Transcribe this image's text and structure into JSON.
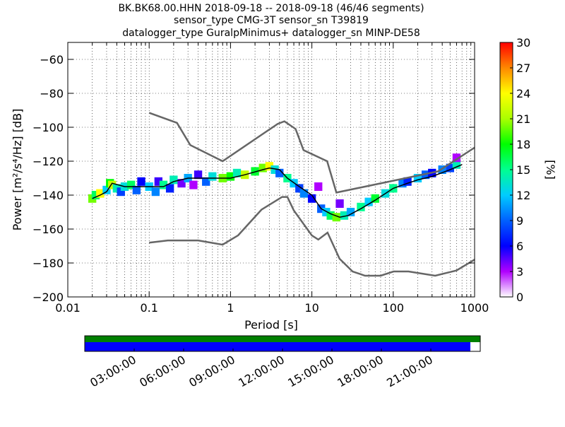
{
  "title": {
    "line1": "BK.BK68.00.HHN   2018-09-18 -- 2018-09-18  (46/46 segments)",
    "line2": "sensor_type CMG-3T sensor_sn T39819",
    "line3": "datalogger_type GuralpMinimus+ datalogger_sn MINP-DE58"
  },
  "colorbar": {
    "label": "[%]",
    "ticks": [
      "0",
      "3",
      "6",
      "9",
      "12",
      "15",
      "18",
      "21",
      "24",
      "27",
      "30"
    ],
    "range": [
      0,
      30
    ]
  },
  "timeline": {
    "labels": [
      "03:00:00",
      "06:00:00",
      "09:00:00",
      "12:00:00",
      "15:00:00",
      "18:00:00",
      "21:00:00"
    ],
    "coverage_color": "#008000",
    "data_color": "#0000ff",
    "coverage_fraction": 1.0,
    "data_fraction": 0.975
  },
  "chart_data": {
    "type": "heatmap",
    "title": "BK.BK68.00.HHN   2018-09-18 -- 2018-09-18  (46/46 segments)",
    "xlabel": "Period [s]",
    "ylabel": "Power [m²/s⁴/Hz] [dB]",
    "x_scale": "log",
    "xlim": [
      0.01,
      1000
    ],
    "ylim": [
      -200,
      -50
    ],
    "x_ticks": [
      0.01,
      0.1,
      1,
      10,
      100,
      1000
    ],
    "x_tick_labels": [
      "0.01",
      "0.1",
      "1",
      "10",
      "100",
      "1000"
    ],
    "y_ticks": [
      -200,
      -180,
      -160,
      -140,
      -120,
      -100,
      -80,
      -60
    ],
    "y_tick_labels": [
      "−200",
      "−180",
      "−160",
      "−140",
      "−120",
      "−100",
      "−80",
      "−60"
    ],
    "grid": true,
    "noise_models": [
      {
        "name": "NHNM",
        "x": [
          0.1,
          0.22,
          0.32,
          0.8,
          3.8,
          4.6,
          6.3,
          7.9,
          15.4,
          20,
          354.8,
          1000
        ],
        "y": [
          -91.5,
          -97.4,
          -110.5,
          -120,
          -98,
          -96.5,
          -101,
          -113.5,
          -120,
          -138.5,
          -126,
          -112
        ]
      },
      {
        "name": "NLNM",
        "x": [
          0.1,
          0.17,
          0.4,
          0.8,
          1.24,
          2.4,
          4.3,
          5.0,
          6.0,
          10.0,
          12.0,
          15.6,
          21.9,
          31.6,
          45,
          70,
          101,
          154,
          328,
          600,
          1000
        ],
        "y": [
          -168,
          -166.7,
          -166.7,
          -169.2,
          -163.7,
          -148.6,
          -141.1,
          -141.1,
          -149,
          -163.8,
          -166.2,
          -162.1,
          -177.5,
          -185,
          -187.5,
          -187.5,
          -185,
          -185,
          -187.5,
          -184.4,
          -178
        ]
      }
    ],
    "median_curve": {
      "x": [
        0.02,
        0.025,
        0.03,
        0.035,
        0.05,
        0.1,
        0.15,
        0.2,
        0.3,
        0.5,
        1,
        1.5,
        2.5,
        3,
        4,
        5,
        7,
        10,
        13,
        17,
        22,
        28,
        40,
        60,
        100,
        150,
        200,
        300,
        500,
        700
      ],
      "y": [
        -142,
        -140,
        -138,
        -133,
        -135,
        -135,
        -135,
        -132,
        -130,
        -130,
        -130,
        -128,
        -125,
        -124,
        -125,
        -130,
        -135,
        -140,
        -148,
        -151,
        -153,
        -152,
        -148,
        -143,
        -136,
        -133,
        -131,
        -129,
        -125,
        -122
      ]
    },
    "histogram_cells": [
      {
        "x": 0.02,
        "y": -142,
        "pct": 20
      },
      {
        "x": 0.022,
        "y": -140,
        "pct": 16
      },
      {
        "x": 0.025,
        "y": -139,
        "pct": 24
      },
      {
        "x": 0.03,
        "y": -137,
        "pct": 12
      },
      {
        "x": 0.033,
        "y": -133,
        "pct": 18
      },
      {
        "x": 0.035,
        "y": -134,
        "pct": 22
      },
      {
        "x": 0.04,
        "y": -136,
        "pct": 14
      },
      {
        "x": 0.045,
        "y": -138,
        "pct": 8
      },
      {
        "x": 0.05,
        "y": -135,
        "pct": 13
      },
      {
        "x": 0.06,
        "y": -134,
        "pct": 16
      },
      {
        "x": 0.07,
        "y": -137,
        "pct": 9
      },
      {
        "x": 0.08,
        "y": -132,
        "pct": 6
      },
      {
        "x": 0.1,
        "y": -135,
        "pct": 12
      },
      {
        "x": 0.12,
        "y": -138,
        "pct": 10
      },
      {
        "x": 0.13,
        "y": -132,
        "pct": 5
      },
      {
        "x": 0.15,
        "y": -134,
        "pct": 15
      },
      {
        "x": 0.18,
        "y": -136,
        "pct": 7
      },
      {
        "x": 0.2,
        "y": -131,
        "pct": 14
      },
      {
        "x": 0.25,
        "y": -133,
        "pct": 4
      },
      {
        "x": 0.3,
        "y": -130,
        "pct": 11
      },
      {
        "x": 0.35,
        "y": -134,
        "pct": 3
      },
      {
        "x": 0.4,
        "y": -128,
        "pct": 5
      },
      {
        "x": 0.5,
        "y": -132,
        "pct": 9
      },
      {
        "x": 0.6,
        "y": -129,
        "pct": 13
      },
      {
        "x": 0.8,
        "y": -130,
        "pct": 20
      },
      {
        "x": 1,
        "y": -129,
        "pct": 18
      },
      {
        "x": 1.2,
        "y": -127,
        "pct": 14
      },
      {
        "x": 1.5,
        "y": -128,
        "pct": 22
      },
      {
        "x": 2,
        "y": -126,
        "pct": 17
      },
      {
        "x": 2.5,
        "y": -124,
        "pct": 20
      },
      {
        "x": 3,
        "y": -123,
        "pct": 24
      },
      {
        "x": 3.5,
        "y": -125,
        "pct": 13
      },
      {
        "x": 4,
        "y": -127,
        "pct": 9
      },
      {
        "x": 5,
        "y": -130,
        "pct": 15
      },
      {
        "x": 6,
        "y": -133,
        "pct": 12
      },
      {
        "x": 7,
        "y": -136,
        "pct": 8
      },
      {
        "x": 8,
        "y": -139,
        "pct": 10
      },
      {
        "x": 10,
        "y": -142,
        "pct": 6
      },
      {
        "x": 12,
        "y": -135,
        "pct": 3
      },
      {
        "x": 13,
        "y": -148,
        "pct": 9
      },
      {
        "x": 15,
        "y": -150,
        "pct": 12
      },
      {
        "x": 17,
        "y": -152,
        "pct": 16
      },
      {
        "x": 20,
        "y": -153,
        "pct": 20
      },
      {
        "x": 22,
        "y": -145,
        "pct": 4
      },
      {
        "x": 25,
        "y": -152,
        "pct": 14
      },
      {
        "x": 30,
        "y": -150,
        "pct": 11
      },
      {
        "x": 40,
        "y": -147,
        "pct": 15
      },
      {
        "x": 50,
        "y": -144,
        "pct": 12
      },
      {
        "x": 60,
        "y": -142,
        "pct": 17
      },
      {
        "x": 80,
        "y": -139,
        "pct": 13
      },
      {
        "x": 100,
        "y": -136,
        "pct": 15
      },
      {
        "x": 130,
        "y": -133,
        "pct": 10
      },
      {
        "x": 150,
        "y": -132,
        "pct": 7
      },
      {
        "x": 200,
        "y": -130,
        "pct": 12
      },
      {
        "x": 250,
        "y": -128,
        "pct": 9
      },
      {
        "x": 300,
        "y": -127,
        "pct": 6
      },
      {
        "x": 400,
        "y": -125,
        "pct": 10
      },
      {
        "x": 500,
        "y": -124,
        "pct": 8
      },
      {
        "x": 600,
        "y": -122,
        "pct": 14
      },
      {
        "x": 600,
        "y": -118,
        "pct": 3
      }
    ]
  }
}
